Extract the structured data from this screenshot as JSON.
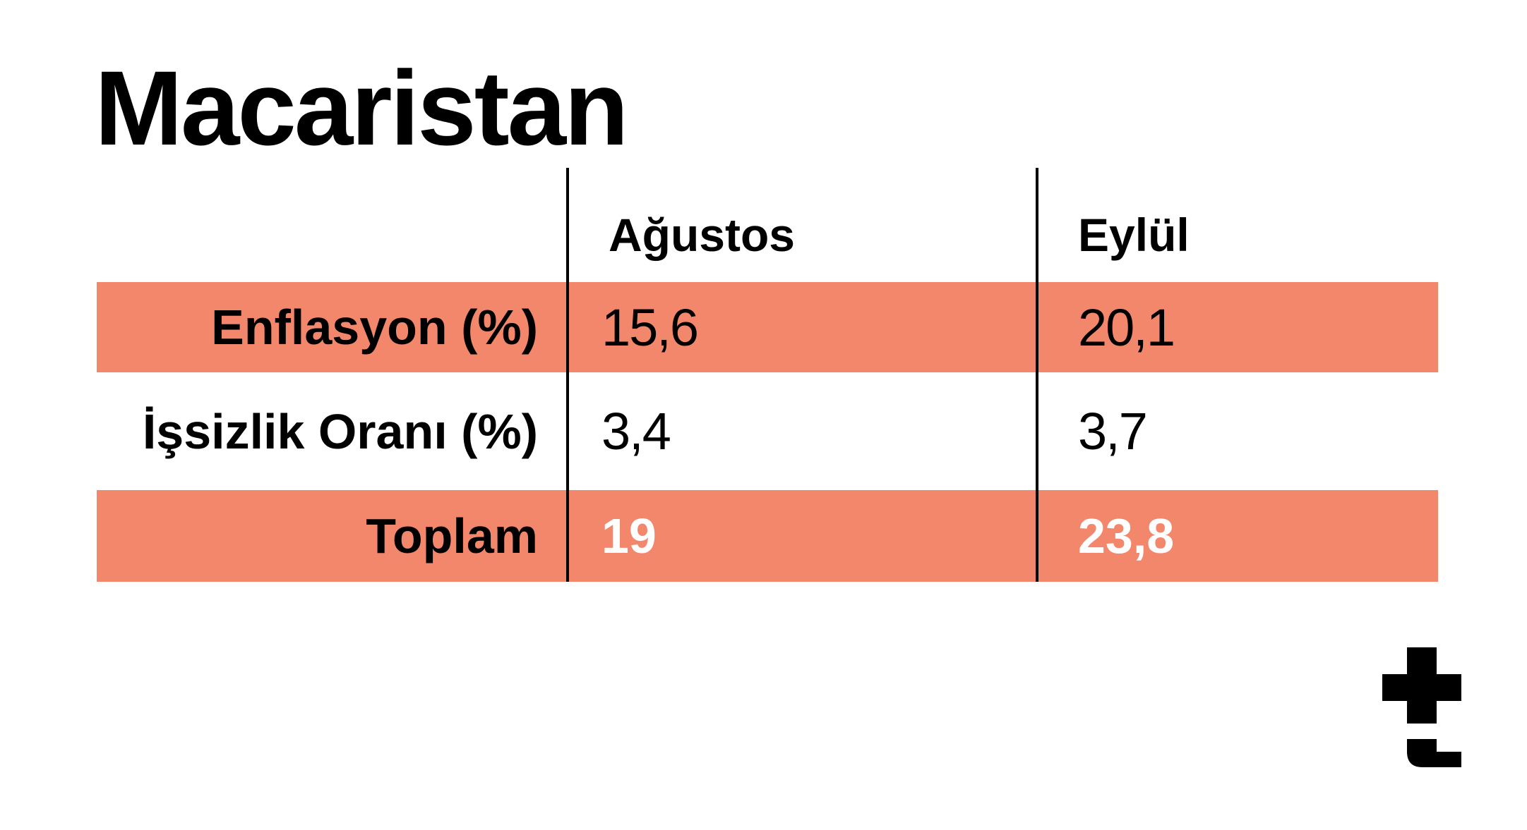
{
  "title": "Macaristan",
  "colors": {
    "row_highlight": "#f2876b",
    "text": "#000000",
    "total_value_text": "#ffffff"
  },
  "logo_icon": "t-logo-icon",
  "chart_data": {
    "type": "table",
    "title": "Macaristan",
    "columns": [
      "Ağustos",
      "Eylül"
    ],
    "rows": [
      {
        "label": "Enflasyon (%)",
        "values": [
          "15,6",
          "20,1"
        ],
        "highlighted": true
      },
      {
        "label": "İşsizlik Oranı (%)",
        "values": [
          "3,4",
          "3,7"
        ],
        "highlighted": false
      },
      {
        "label": "Toplam",
        "values": [
          "19",
          "23,8"
        ],
        "highlighted": true
      }
    ]
  }
}
